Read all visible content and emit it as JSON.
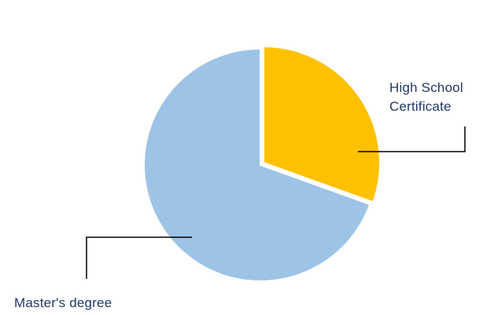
{
  "chart_data": {
    "type": "pie",
    "slices": [
      {
        "label": "High School Certificate",
        "label_lines": [
          "High School",
          "Certificate"
        ],
        "value": 30.5,
        "color": "#FFC000"
      },
      {
        "label": "Master's degree",
        "label_lines": [
          "Master's degree"
        ],
        "value": 69.5,
        "color": "#9DC3E6"
      }
    ],
    "label_color": "#1F3864",
    "leader_color": "#000000",
    "legend": "none"
  }
}
